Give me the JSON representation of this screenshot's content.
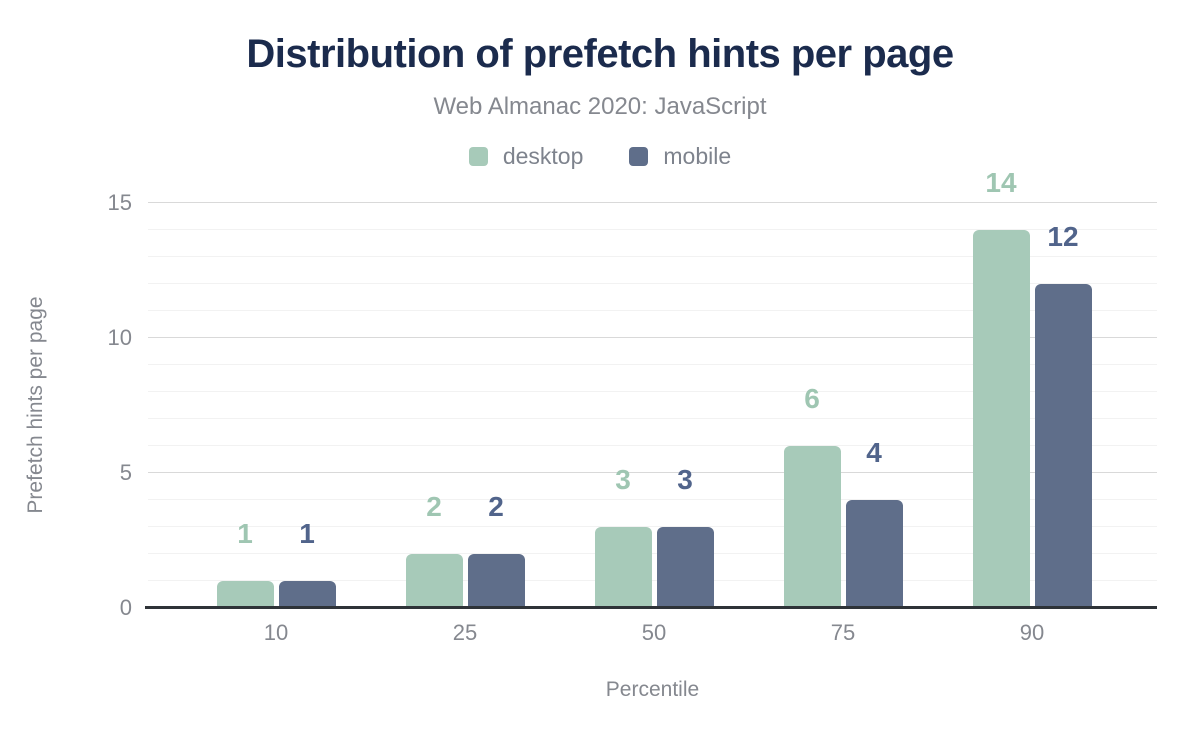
{
  "chart_data": {
    "type": "bar",
    "title": "Distribution of prefetch hints per page",
    "subtitle": "Web Almanac 2020: JavaScript",
    "xlabel": "Percentile",
    "ylabel": "Prefetch hints per page",
    "categories": [
      "10",
      "25",
      "50",
      "75",
      "90"
    ],
    "series": [
      {
        "name": "desktop",
        "color": "#a7cab9",
        "label_color": "#9fc6b2",
        "values": [
          1,
          2,
          3,
          6,
          14
        ]
      },
      {
        "name": "mobile",
        "color": "#5f6e8a",
        "label_color": "#51648b",
        "values": [
          1,
          2,
          3,
          4,
          12
        ]
      }
    ],
    "ylim": [
      0,
      15
    ],
    "yticks": [
      0,
      5,
      10,
      15
    ],
    "grid": {
      "minor_step": 1,
      "major_step": 5,
      "shown": true
    },
    "legend_position": "top"
  },
  "colors": {
    "background": "#ffffff",
    "title": "#1b2b4d",
    "subtitle": "#85888f",
    "axis_text": "#85888f",
    "legend_text": "#7e838d",
    "major_grid": "#d9d9d9",
    "minor_grid": "#f2f2f2",
    "zero_line": "#2e3338"
  }
}
